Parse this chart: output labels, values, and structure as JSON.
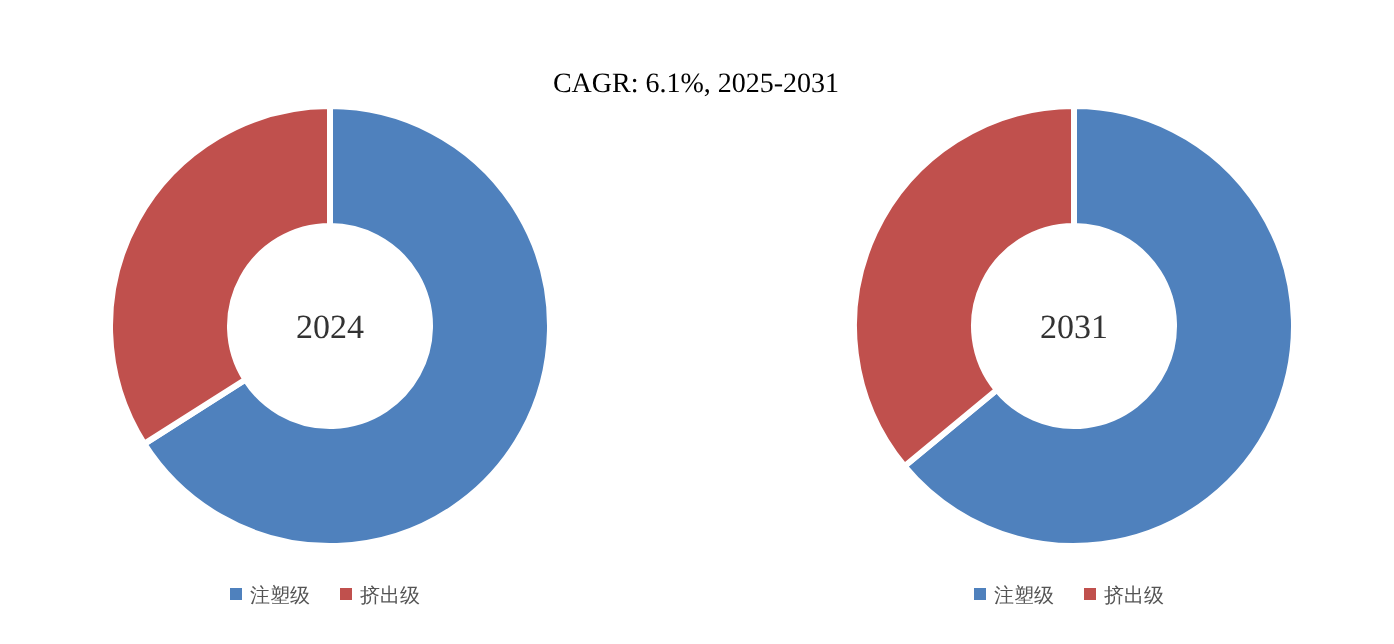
{
  "chart_data": [
    {
      "type": "donut",
      "title": "CAGR:  6.1%, 2025-2031",
      "annotations": [
        "2024"
      ],
      "categories": [
        "注塑级",
        "挤出级"
      ],
      "values": [
        66,
        34
      ],
      "colors": [
        "#4f81bd",
        "#c0504d"
      ],
      "legend": "bottom"
    },
    {
      "type": "donut",
      "annotations": [
        "2031"
      ],
      "categories": [
        "注塑级",
        "挤出级"
      ],
      "values": [
        64,
        36
      ],
      "colors": [
        "#4f81bd",
        "#c0504d"
      ],
      "legend": "bottom"
    }
  ]
}
